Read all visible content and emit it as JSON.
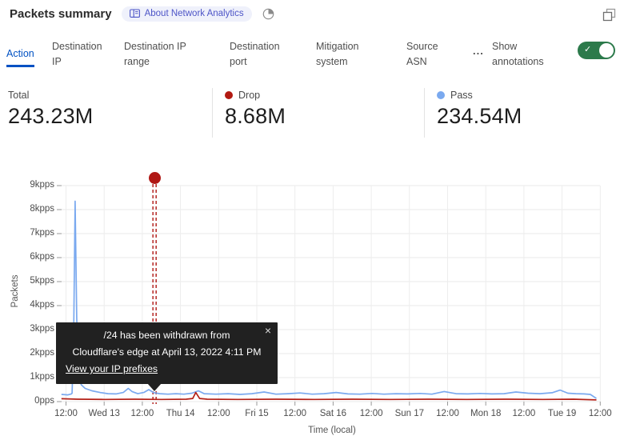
{
  "header": {
    "title": "Packets summary",
    "badge_label": "About Network Analytics",
    "expand_tooltip": "expand"
  },
  "tabs": {
    "items": [
      {
        "label": "Action",
        "active": true
      },
      {
        "label": "Destination IP",
        "active": false
      },
      {
        "label": "Destination IP range",
        "active": false
      },
      {
        "label": "Destination port",
        "active": false
      },
      {
        "label": "Mitigation system",
        "active": false
      },
      {
        "label": "Source ASN",
        "active": false
      }
    ],
    "more_label": "...",
    "show_annotations_label": "Show annotations",
    "annotations_on": true
  },
  "stats": {
    "total": {
      "label": "Total",
      "value": "243.23M"
    },
    "drop": {
      "label": "Drop",
      "value": "8.68M",
      "color": "#b21a12"
    },
    "pass": {
      "label": "Pass",
      "value": "234.54M",
      "color": "#7aa9ef"
    }
  },
  "tooltip": {
    "line1": "/24 has been withdrawn from",
    "line2": "Cloudflare's edge at April 13, 2022 4:11 PM",
    "link": "View your IP prefixes",
    "close": "×"
  },
  "colors": {
    "accent_blue": "#0051c3",
    "toggle_green": "#2c7a4b",
    "badge_indigo": "#4d55c7",
    "grid": "#e9e9e9",
    "tick": "#9a9a9a"
  },
  "chart_data": {
    "type": "line",
    "title": "Packets summary",
    "xlabel": "Time (local)",
    "ylabel": "Packets",
    "ylim": [
      0,
      9
    ],
    "y_unit": "kpps",
    "grid": true,
    "y_tick_labels": [
      "0pps",
      "1kpps",
      "2kpps",
      "3kpps",
      "4kpps",
      "5kpps",
      "6kpps",
      "7kpps",
      "8kpps",
      "9kpps"
    ],
    "x_tick_labels": [
      "12:00",
      "Wed 13",
      "12:00",
      "Thu 14",
      "12:00",
      "Fri 15",
      "12:00",
      "Sat 16",
      "12:00",
      "Sun 17",
      "12:00",
      "Mon 18",
      "12:00",
      "Tue 19",
      "12:00"
    ],
    "x_unit": "ticks of 12 hours, 0 = Tue Apr 12 12:00",
    "series": [
      {
        "name": "Pass",
        "color": "#7aa9ef",
        "points": [
          [
            -0.12,
            0.3
          ],
          [
            0.05,
            0.28
          ],
          [
            0.14,
            0.32
          ],
          [
            0.16,
            0.35
          ],
          [
            0.2,
            2.5
          ],
          [
            0.24,
            8.35
          ],
          [
            0.28,
            3.5
          ],
          [
            0.32,
            1.1
          ],
          [
            0.4,
            0.7
          ],
          [
            0.5,
            0.55
          ],
          [
            0.68,
            0.45
          ],
          [
            0.89,
            0.38
          ],
          [
            1.1,
            0.33
          ],
          [
            1.31,
            0.32
          ],
          [
            1.5,
            0.38
          ],
          [
            1.63,
            0.55
          ],
          [
            1.73,
            0.42
          ],
          [
            1.88,
            0.33
          ],
          [
            2.04,
            0.38
          ],
          [
            2.17,
            0.5
          ],
          [
            2.3,
            0.37
          ],
          [
            2.46,
            0.33
          ],
          [
            2.67,
            0.31
          ],
          [
            2.88,
            0.33
          ],
          [
            3.09,
            0.31
          ],
          [
            3.3,
            0.35
          ],
          [
            3.47,
            0.45
          ],
          [
            3.62,
            0.33
          ],
          [
            3.93,
            0.31
          ],
          [
            4.25,
            0.33
          ],
          [
            4.56,
            0.3
          ],
          [
            4.87,
            0.33
          ],
          [
            5.19,
            0.4
          ],
          [
            5.5,
            0.31
          ],
          [
            5.82,
            0.33
          ],
          [
            6.13,
            0.36
          ],
          [
            6.45,
            0.31
          ],
          [
            6.76,
            0.33
          ],
          [
            7.08,
            0.38
          ],
          [
            7.39,
            0.32
          ],
          [
            7.7,
            0.31
          ],
          [
            8.02,
            0.34
          ],
          [
            8.33,
            0.31
          ],
          [
            8.65,
            0.33
          ],
          [
            8.96,
            0.32
          ],
          [
            9.28,
            0.34
          ],
          [
            9.59,
            0.31
          ],
          [
            9.91,
            0.42
          ],
          [
            10.22,
            0.33
          ],
          [
            10.53,
            0.32
          ],
          [
            10.85,
            0.34
          ],
          [
            11.16,
            0.32
          ],
          [
            11.48,
            0.33
          ],
          [
            11.79,
            0.4
          ],
          [
            12.11,
            0.35
          ],
          [
            12.42,
            0.33
          ],
          [
            12.74,
            0.37
          ],
          [
            12.95,
            0.48
          ],
          [
            13.15,
            0.35
          ],
          [
            13.36,
            0.33
          ],
          [
            13.57,
            0.32
          ],
          [
            13.74,
            0.3
          ],
          [
            13.9,
            0.13
          ]
        ]
      },
      {
        "name": "Drop",
        "color": "#b32017",
        "points": [
          [
            -0.12,
            0.12
          ],
          [
            0.3,
            0.1
          ],
          [
            1.0,
            0.09
          ],
          [
            1.8,
            0.1
          ],
          [
            2.5,
            0.09
          ],
          [
            3.15,
            0.1
          ],
          [
            3.32,
            0.13
          ],
          [
            3.4,
            0.38
          ],
          [
            3.5,
            0.13
          ],
          [
            3.7,
            0.1
          ],
          [
            4.5,
            0.09
          ],
          [
            5.5,
            0.1
          ],
          [
            6.5,
            0.09
          ],
          [
            7.5,
            0.1
          ],
          [
            8.5,
            0.09
          ],
          [
            9.5,
            0.1
          ],
          [
            10.5,
            0.09
          ],
          [
            11.5,
            0.1
          ],
          [
            12.5,
            0.09
          ],
          [
            13.3,
            0.1
          ],
          [
            13.9,
            0.07
          ]
        ]
      }
    ],
    "annotation": {
      "t": 2.32,
      "line_color": "#b01815",
      "dot_color": "#b01815",
      "text": "/24 has been withdrawn from Cloudflare's edge at April 13, 2022 4:11 PM"
    }
  }
}
